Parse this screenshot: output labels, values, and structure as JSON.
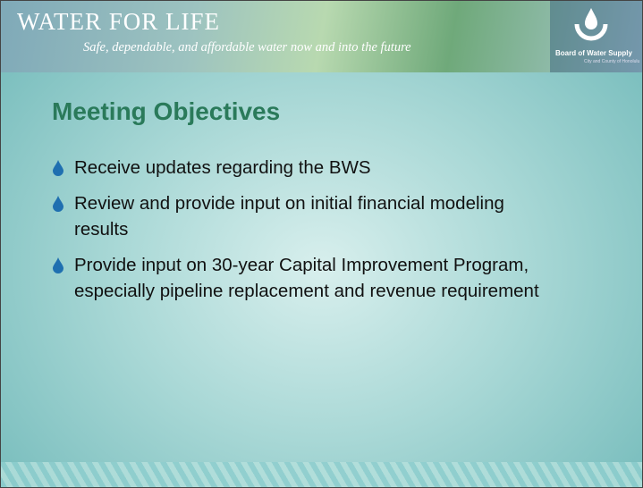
{
  "header": {
    "title": "WATER FOR LIFE",
    "tagline": "Safe, dependable, and affordable water now and into the future"
  },
  "logo": {
    "name": "Board of Water Supply",
    "subtext": "City and County of Honolulu"
  },
  "slide": {
    "title": "Meeting Objectives",
    "bullets": [
      "Receive updates regarding the BWS",
      "Review and provide input on initial financial modeling results",
      "Provide input on 30-year Capital Improvement Program, especially pipeline replacement and revenue requirement"
    ]
  }
}
